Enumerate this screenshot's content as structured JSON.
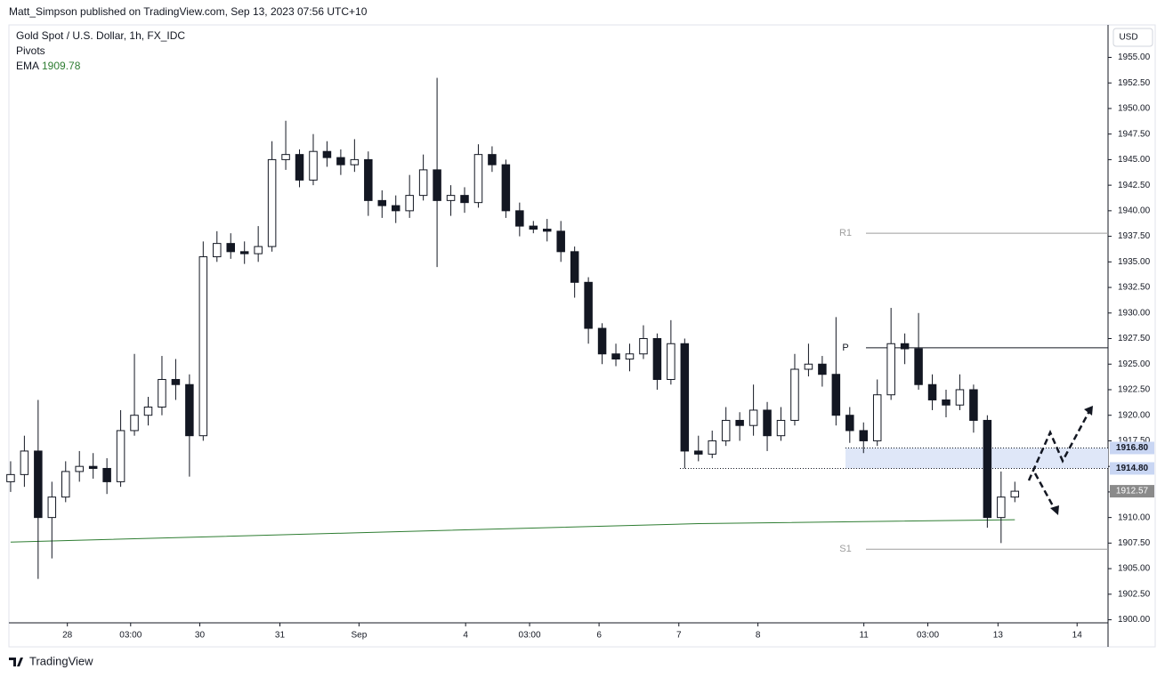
{
  "header": {
    "published": "Matt_Simpson published on TradingView.com, Sep 13, 2023 07:56 UTC+10",
    "logo": "TradingView"
  },
  "chart_data": {
    "type": "candlestick",
    "title": "Gold Spot / U.S. Dollar, 1h, FX_IDC",
    "indicator": "Pivots",
    "currency": "USD",
    "x": [
      0,
      4,
      8,
      12,
      16,
      20,
      24,
      28,
      32,
      36,
      40,
      44,
      48,
      52,
      56,
      60,
      64,
      68,
      72,
      76,
      80,
      84,
      88,
      92,
      96,
      100,
      104,
      108,
      112,
      116,
      120,
      124,
      128,
      132,
      136,
      140,
      144,
      148,
      152,
      156,
      160,
      164,
      168,
      172,
      176,
      180,
      184,
      188,
      192,
      196,
      200,
      204,
      208,
      212,
      216,
      220,
      224,
      228,
      232,
      236,
      240,
      244,
      248,
      252,
      256,
      260,
      264,
      268,
      272,
      276,
      280,
      284,
      288,
      292
    ],
    "open": [
      1913.5,
      1914.2,
      1916.5,
      1910.0,
      1912.0,
      1914.5,
      1915.0,
      1914.8,
      1913.5,
      1918.5,
      1920.0,
      1920.8,
      1923.5,
      1923.0,
      1918.0,
      1935.5,
      1936.8,
      1936.0,
      1935.8,
      1936.5,
      1945.0,
      1945.5,
      1943.0,
      1945.8,
      1945.2,
      1944.5,
      1945.0,
      1941.0,
      1940.5,
      1940.0,
      1941.5,
      1944.0,
      1941.0,
      1941.5,
      1940.8,
      1945.5,
      1944.5,
      1940.0,
      1938.5,
      1938.2,
      1938.0,
      1936.0,
      1933.0,
      1928.5,
      1926.0,
      1925.5,
      1926.0,
      1927.5,
      1923.5,
      1927.0,
      1916.5,
      1916.2,
      1917.5,
      1919.5,
      1919.0,
      1920.5,
      1918.0,
      1919.5,
      1924.5,
      1925.0,
      1924.0,
      1920.0,
      1918.5,
      1917.5,
      1922.0,
      1927.0,
      1926.5,
      1923.0,
      1921.5,
      1921.0,
      1922.5,
      1919.5,
      1910.0,
      1912.0
    ],
    "high": [
      1915.5,
      1918.0,
      1921.5,
      1913.5,
      1915.5,
      1916.5,
      1916.3,
      1915.8,
      1920.5,
      1926.0,
      1921.8,
      1925.8,
      1925.5,
      1924.0,
      1937.0,
      1938.0,
      1937.8,
      1937.0,
      1938.5,
      1946.8,
      1948.8,
      1946.0,
      1947.5,
      1946.8,
      1946.0,
      1947.0,
      1945.8,
      1942.0,
      1941.5,
      1943.5,
      1945.5,
      1953.0,
      1942.5,
      1942.3,
      1946.5,
      1946.3,
      1945.0,
      1940.8,
      1939.0,
      1939.2,
      1939.0,
      1936.5,
      1933.5,
      1929.0,
      1927.0,
      1927.0,
      1928.8,
      1928.0,
      1929.3,
      1927.5,
      1918.0,
      1918.5,
      1920.8,
      1920.3,
      1923.0,
      1921.3,
      1920.8,
      1926.0,
      1927.0,
      1925.8,
      1929.6,
      1920.8,
      1919.3,
      1923.5,
      1930.5,
      1928.0,
      1930.0,
      1924.0,
      1922.5,
      1924.0,
      1923.0,
      1920.0,
      1914.5,
      1913.5
    ],
    "low": [
      1912.5,
      1913.0,
      1904.0,
      1906.0,
      1911.5,
      1913.5,
      1913.8,
      1912.3,
      1913.0,
      1918.0,
      1919.0,
      1920.0,
      1921.5,
      1914.0,
      1917.5,
      1935.0,
      1935.3,
      1934.8,
      1935.0,
      1936.0,
      1944.0,
      1942.3,
      1942.5,
      1944.3,
      1943.5,
      1943.8,
      1939.5,
      1939.3,
      1938.8,
      1939.3,
      1941.0,
      1934.5,
      1939.5,
      1939.8,
      1940.3,
      1943.8,
      1939.3,
      1937.5,
      1937.8,
      1937.0,
      1935.0,
      1931.5,
      1927.0,
      1925.0,
      1924.8,
      1924.3,
      1925.5,
      1922.5,
      1923.0,
      1914.8,
      1915.5,
      1915.8,
      1917.0,
      1917.5,
      1918.0,
      1916.5,
      1917.5,
      1919.0,
      1923.8,
      1922.8,
      1919.0,
      1917.3,
      1916.3,
      1917.0,
      1921.5,
      1925.0,
      1922.5,
      1920.5,
      1919.8,
      1920.5,
      1918.3,
      1909.0,
      1907.5,
      1911.5
    ],
    "close": [
      1914.2,
      1916.5,
      1910.0,
      1912.0,
      1914.5,
      1915.0,
      1914.8,
      1913.5,
      1918.5,
      1920.0,
      1920.8,
      1923.5,
      1923.0,
      1918.0,
      1935.5,
      1936.8,
      1936.0,
      1935.8,
      1936.5,
      1945.0,
      1945.5,
      1943.0,
      1945.8,
      1945.2,
      1944.5,
      1945.0,
      1941.0,
      1940.5,
      1940.0,
      1941.5,
      1944.0,
      1941.0,
      1941.5,
      1940.8,
      1945.5,
      1944.5,
      1940.0,
      1938.5,
      1938.2,
      1938.0,
      1936.0,
      1933.0,
      1928.5,
      1926.0,
      1925.5,
      1926.0,
      1927.5,
      1923.5,
      1927.0,
      1916.5,
      1916.2,
      1917.5,
      1919.5,
      1919.0,
      1920.5,
      1918.0,
      1919.5,
      1924.5,
      1925.0,
      1924.0,
      1920.0,
      1918.5,
      1917.5,
      1922.0,
      1927.0,
      1926.5,
      1923.0,
      1921.5,
      1921.0,
      1922.5,
      1919.5,
      1910.0,
      1912.0,
      1912.57
    ],
    "up_color": "#ffffff",
    "down_color": "#131722",
    "edge_color": "#131722",
    "xlim": [
      -0.5,
      319.1
    ],
    "ylim": [
      1899.7,
      1958
    ],
    "xticks": [
      {
        "value": 16.5,
        "label": "28"
      },
      {
        "value": 34.9,
        "label": "03:00"
      },
      {
        "value": 55,
        "label": "30"
      },
      {
        "value": 78.3,
        "label": "31"
      },
      {
        "value": 101.3,
        "label": "Sep"
      },
      {
        "value": 132.3,
        "label": "4"
      },
      {
        "value": 150.9,
        "label": "03:00"
      },
      {
        "value": 171.1,
        "label": "6"
      },
      {
        "value": 194.3,
        "label": "7"
      },
      {
        "value": 217.3,
        "label": "8"
      },
      {
        "value": 248.1,
        "label": "11"
      },
      {
        "value": 266.7,
        "label": "03:00"
      },
      {
        "value": 287.1,
        "label": "13"
      },
      {
        "value": 310.1,
        "label": "14"
      }
    ],
    "yticks": [
      {
        "value": 1900,
        "label": "1900.00"
      },
      {
        "value": 1902.5,
        "label": "1902.50"
      },
      {
        "value": 1905,
        "label": "1905.00"
      },
      {
        "value": 1907.5,
        "label": "1907.50"
      },
      {
        "value": 1910,
        "label": "1910.00"
      },
      {
        "value": 1912.5,
        "label": "1912.50"
      },
      {
        "value": 1915,
        "label": "1915.00"
      },
      {
        "value": 1917.5,
        "label": "1917.50"
      },
      {
        "value": 1920,
        "label": "1920.00"
      },
      {
        "value": 1922.5,
        "label": "1922.50"
      },
      {
        "value": 1925,
        "label": "1925.00"
      },
      {
        "value": 1927.5,
        "label": "1927.50"
      },
      {
        "value": 1930,
        "label": "1930.00"
      },
      {
        "value": 1932.5,
        "label": "1932.50"
      },
      {
        "value": 1935,
        "label": "1935.00"
      },
      {
        "value": 1937.5,
        "label": "1937.50"
      },
      {
        "value": 1940,
        "label": "1940.00"
      },
      {
        "value": 1942.5,
        "label": "1942.50"
      },
      {
        "value": 1945,
        "label": "1945.00"
      },
      {
        "value": 1947.5,
        "label": "1947.50"
      },
      {
        "value": 1950,
        "label": "1950.00"
      },
      {
        "value": 1952.5,
        "label": "1952.50"
      },
      {
        "value": 1955,
        "label": "1955.00"
      }
    ],
    "ema": {
      "name": "EMA",
      "color": "#2e7d32",
      "x": [
        0,
        100,
        200,
        292
      ],
      "values": [
        1907.6,
        1908.5,
        1909.4,
        1909.78
      ]
    },
    "pivots": [
      {
        "name": "R1",
        "value": 1937.8,
        "color": "#9e9e9e"
      },
      {
        "name": "P",
        "value": 1926.6,
        "color": "#131722"
      },
      {
        "name": "S1",
        "value": 1906.9,
        "color": "#9e9e9e"
      }
    ],
    "zone": {
      "values": [
        1914.8,
        1916.8
      ],
      "value_labels": [
        "1914.80",
        "1916.80"
      ],
      "color": "#dfe7f8"
    }
  }
}
